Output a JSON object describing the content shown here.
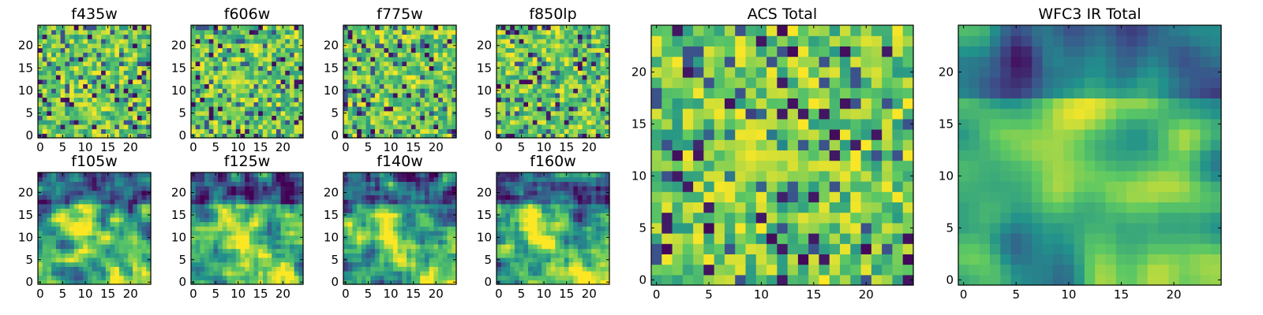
{
  "figure": {
    "panels": [
      {
        "id": "f435w",
        "title": "f435w",
        "pattern": "noise",
        "seed": 11
      },
      {
        "id": "f606w",
        "title": "f606w",
        "pattern": "noise-blob",
        "seed": 23
      },
      {
        "id": "f775w",
        "title": "f775w",
        "pattern": "noise",
        "seed": 37
      },
      {
        "id": "f850lp",
        "title": "f850lp",
        "pattern": "noise",
        "seed": 41
      },
      {
        "id": "f105w",
        "title": "f105w",
        "pattern": "smooth",
        "seed": 53
      },
      {
        "id": "f125w",
        "title": "f125w",
        "pattern": "smooth",
        "seed": 67
      },
      {
        "id": "f140w",
        "title": "f140w",
        "pattern": "smooth",
        "seed": 71
      },
      {
        "id": "f160w",
        "title": "f160w",
        "pattern": "smooth",
        "seed": 89
      },
      {
        "id": "acs-total",
        "title": "ACS Total",
        "pattern": "noise-blob",
        "seed": 97
      },
      {
        "id": "wfc3-ir-total",
        "title": "WFC3 IR Total",
        "pattern": "smooth-strong",
        "seed": 101
      }
    ],
    "small_ticks": {
      "x": [
        "0",
        "5",
        "10",
        "15",
        "20"
      ],
      "y": [
        "0",
        "5",
        "10",
        "15",
        "20"
      ]
    },
    "large_ticks": {
      "x": [
        "0",
        "5",
        "10",
        "15",
        "20"
      ],
      "y": [
        "0",
        "5",
        "10",
        "15",
        "20"
      ]
    },
    "grid_size": 25,
    "colormap": "viridis",
    "colors": {
      "viridis": [
        "#440154",
        "#3b528b",
        "#21918c",
        "#5ec962",
        "#fde725"
      ]
    }
  }
}
